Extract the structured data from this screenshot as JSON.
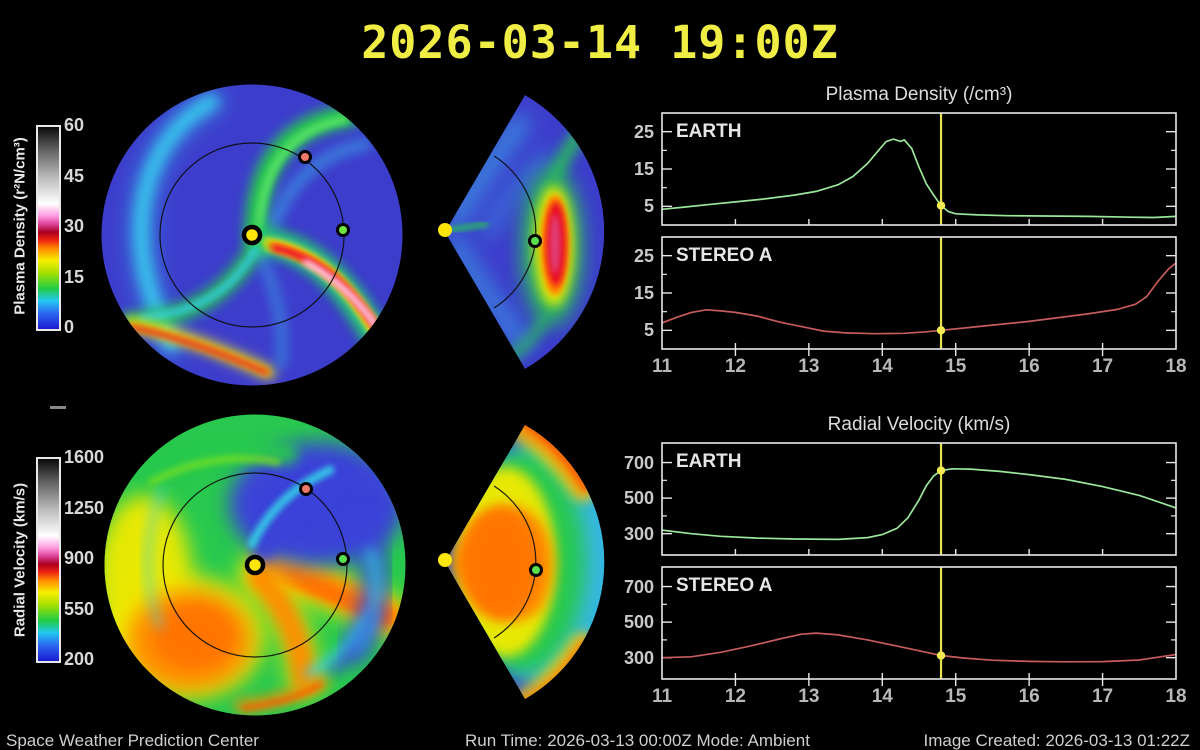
{
  "title": "2026-03-14 19:00Z",
  "colorbars": {
    "density": {
      "label": "Plasma Density (r²N/cm³)",
      "ticks": [
        "60",
        "45",
        "30",
        "15",
        "0"
      ]
    },
    "velocity": {
      "label": "Radial Velocity (km/s)",
      "ticks": [
        "1600",
        "1250",
        "900",
        "550",
        "200"
      ]
    },
    "colormap_stops": [
      [
        "#1b1bd0",
        0
      ],
      [
        "#2b6bf0",
        8
      ],
      [
        "#22c8f0",
        14
      ],
      [
        "#22cc44",
        20
      ],
      [
        "#a8e000",
        28
      ],
      [
        "#f8ee00",
        34
      ],
      [
        "#ff8800",
        40
      ],
      [
        "#ee2211",
        44
      ],
      [
        "#aa0022",
        48
      ],
      [
        "#dd4499",
        52
      ],
      [
        "#ff9ae0",
        56
      ],
      [
        "#ffffff",
        62
      ],
      [
        "#bbbbbb",
        75
      ],
      [
        "#666666",
        88
      ],
      [
        "#0a0a0a",
        100
      ]
    ]
  },
  "chart_data": [
    {
      "id": "plasma-density",
      "type": "line",
      "title": "Plasma Density (/cm³)",
      "xlim": [
        11,
        18
      ],
      "x_ticks": [
        11,
        12,
        13,
        14,
        15,
        16,
        17,
        18
      ],
      "vline_x": 14.8,
      "vline_color": "#e8e34a",
      "panels": [
        {
          "label": "EARTH",
          "color": "#9ae69a",
          "ylim": [
            0,
            30
          ],
          "y_ticks": [
            5,
            15,
            25
          ],
          "y_minor_ticks": [
            10,
            20
          ],
          "marker_y": 5.2,
          "points": [
            [
              11,
              4.2
            ],
            [
              11.3,
              4.8
            ],
            [
              11.6,
              5.4
            ],
            [
              12,
              6.2
            ],
            [
              12.4,
              7.0
            ],
            [
              12.8,
              8.0
            ],
            [
              13.1,
              9.0
            ],
            [
              13.4,
              10.8
            ],
            [
              13.6,
              13.0
            ],
            [
              13.8,
              16.5
            ],
            [
              13.95,
              20.0
            ],
            [
              14.05,
              22.3
            ],
            [
              14.15,
              23.0
            ],
            [
              14.25,
              22.4
            ],
            [
              14.3,
              22.8
            ],
            [
              14.4,
              20.5
            ],
            [
              14.5,
              15.5
            ],
            [
              14.6,
              11.0
            ],
            [
              14.7,
              8.0
            ],
            [
              14.8,
              5.2
            ],
            [
              14.9,
              3.6
            ],
            [
              15.0,
              3.0
            ],
            [
              15.3,
              2.7
            ],
            [
              15.7,
              2.5
            ],
            [
              16.2,
              2.4
            ],
            [
              16.8,
              2.3
            ],
            [
              17.4,
              2.1
            ],
            [
              17.7,
              2.0
            ],
            [
              18,
              2.3
            ]
          ]
        },
        {
          "label": "STEREO A",
          "color": "#c65b5b",
          "ylim": [
            0,
            30
          ],
          "y_ticks": [
            5,
            15,
            25
          ],
          "y_minor_ticks": [
            10,
            20
          ],
          "marker_y": 5.0,
          "points": [
            [
              11,
              7.0
            ],
            [
              11.2,
              8.5
            ],
            [
              11.4,
              9.8
            ],
            [
              11.6,
              10.5
            ],
            [
              11.8,
              10.2
            ],
            [
              12.0,
              9.8
            ],
            [
              12.3,
              8.8
            ],
            [
              12.6,
              7.2
            ],
            [
              12.9,
              6.0
            ],
            [
              13.2,
              4.8
            ],
            [
              13.5,
              4.3
            ],
            [
              13.9,
              4.1
            ],
            [
              14.3,
              4.2
            ],
            [
              14.6,
              4.6
            ],
            [
              14.8,
              5.0
            ],
            [
              15.1,
              5.6
            ],
            [
              15.5,
              6.4
            ],
            [
              16.0,
              7.4
            ],
            [
              16.4,
              8.4
            ],
            [
              16.8,
              9.4
            ],
            [
              17.2,
              10.6
            ],
            [
              17.45,
              12.0
            ],
            [
              17.6,
              14.0
            ],
            [
              17.75,
              18.0
            ],
            [
              17.9,
              21.5
            ],
            [
              18,
              23.0
            ]
          ]
        }
      ]
    },
    {
      "id": "radial-velocity",
      "type": "line",
      "title": "Radial Velocity (km/s)",
      "xlim": [
        11,
        18
      ],
      "x_ticks": [
        11,
        12,
        13,
        14,
        15,
        16,
        17,
        18
      ],
      "vline_x": 14.8,
      "vline_color": "#e8e34a",
      "panels": [
        {
          "label": "EARTH",
          "color": "#9ae69a",
          "ylim": [
            180,
            810
          ],
          "y_ticks": [
            300,
            500,
            700
          ],
          "y_minor_ticks": [
            400,
            600
          ],
          "marker_y": 655,
          "points": [
            [
              11,
              320
            ],
            [
              11.4,
              300
            ],
            [
              11.8,
              285
            ],
            [
              12.3,
              275
            ],
            [
              12.8,
              270
            ],
            [
              13.4,
              268
            ],
            [
              13.8,
              278
            ],
            [
              14.0,
              295
            ],
            [
              14.2,
              330
            ],
            [
              14.35,
              390
            ],
            [
              14.5,
              490
            ],
            [
              14.6,
              570
            ],
            [
              14.7,
              625
            ],
            [
              14.8,
              655
            ],
            [
              14.95,
              665
            ],
            [
              15.2,
              663
            ],
            [
              15.6,
              650
            ],
            [
              16.0,
              632
            ],
            [
              16.5,
              605
            ],
            [
              17.0,
              565
            ],
            [
              17.5,
              515
            ],
            [
              18,
              445
            ]
          ]
        },
        {
          "label": "STEREO A",
          "color": "#c65b5b",
          "ylim": [
            180,
            810
          ],
          "y_ticks": [
            300,
            500,
            700
          ],
          "y_minor_ticks": [
            400,
            600
          ],
          "marker_y": 312,
          "points": [
            [
              11,
              300
            ],
            [
              11.4,
              305
            ],
            [
              11.8,
              330
            ],
            [
              12.2,
              365
            ],
            [
              12.6,
              405
            ],
            [
              12.9,
              432
            ],
            [
              13.1,
              438
            ],
            [
              13.4,
              428
            ],
            [
              13.8,
              400
            ],
            [
              14.2,
              365
            ],
            [
              14.6,
              330
            ],
            [
              14.8,
              312
            ],
            [
              15.1,
              298
            ],
            [
              15.5,
              286
            ],
            [
              16.0,
              279
            ],
            [
              16.5,
              277
            ],
            [
              17.0,
              278
            ],
            [
              17.5,
              287
            ],
            [
              18,
              318
            ]
          ]
        }
      ]
    }
  ],
  "footer": {
    "left": "Space Weather Prediction Center",
    "center": "Run Time: 2026-03-13 00:00Z  Mode: Ambient",
    "right": "Image Created: 2026-03-13 01:22Z"
  }
}
